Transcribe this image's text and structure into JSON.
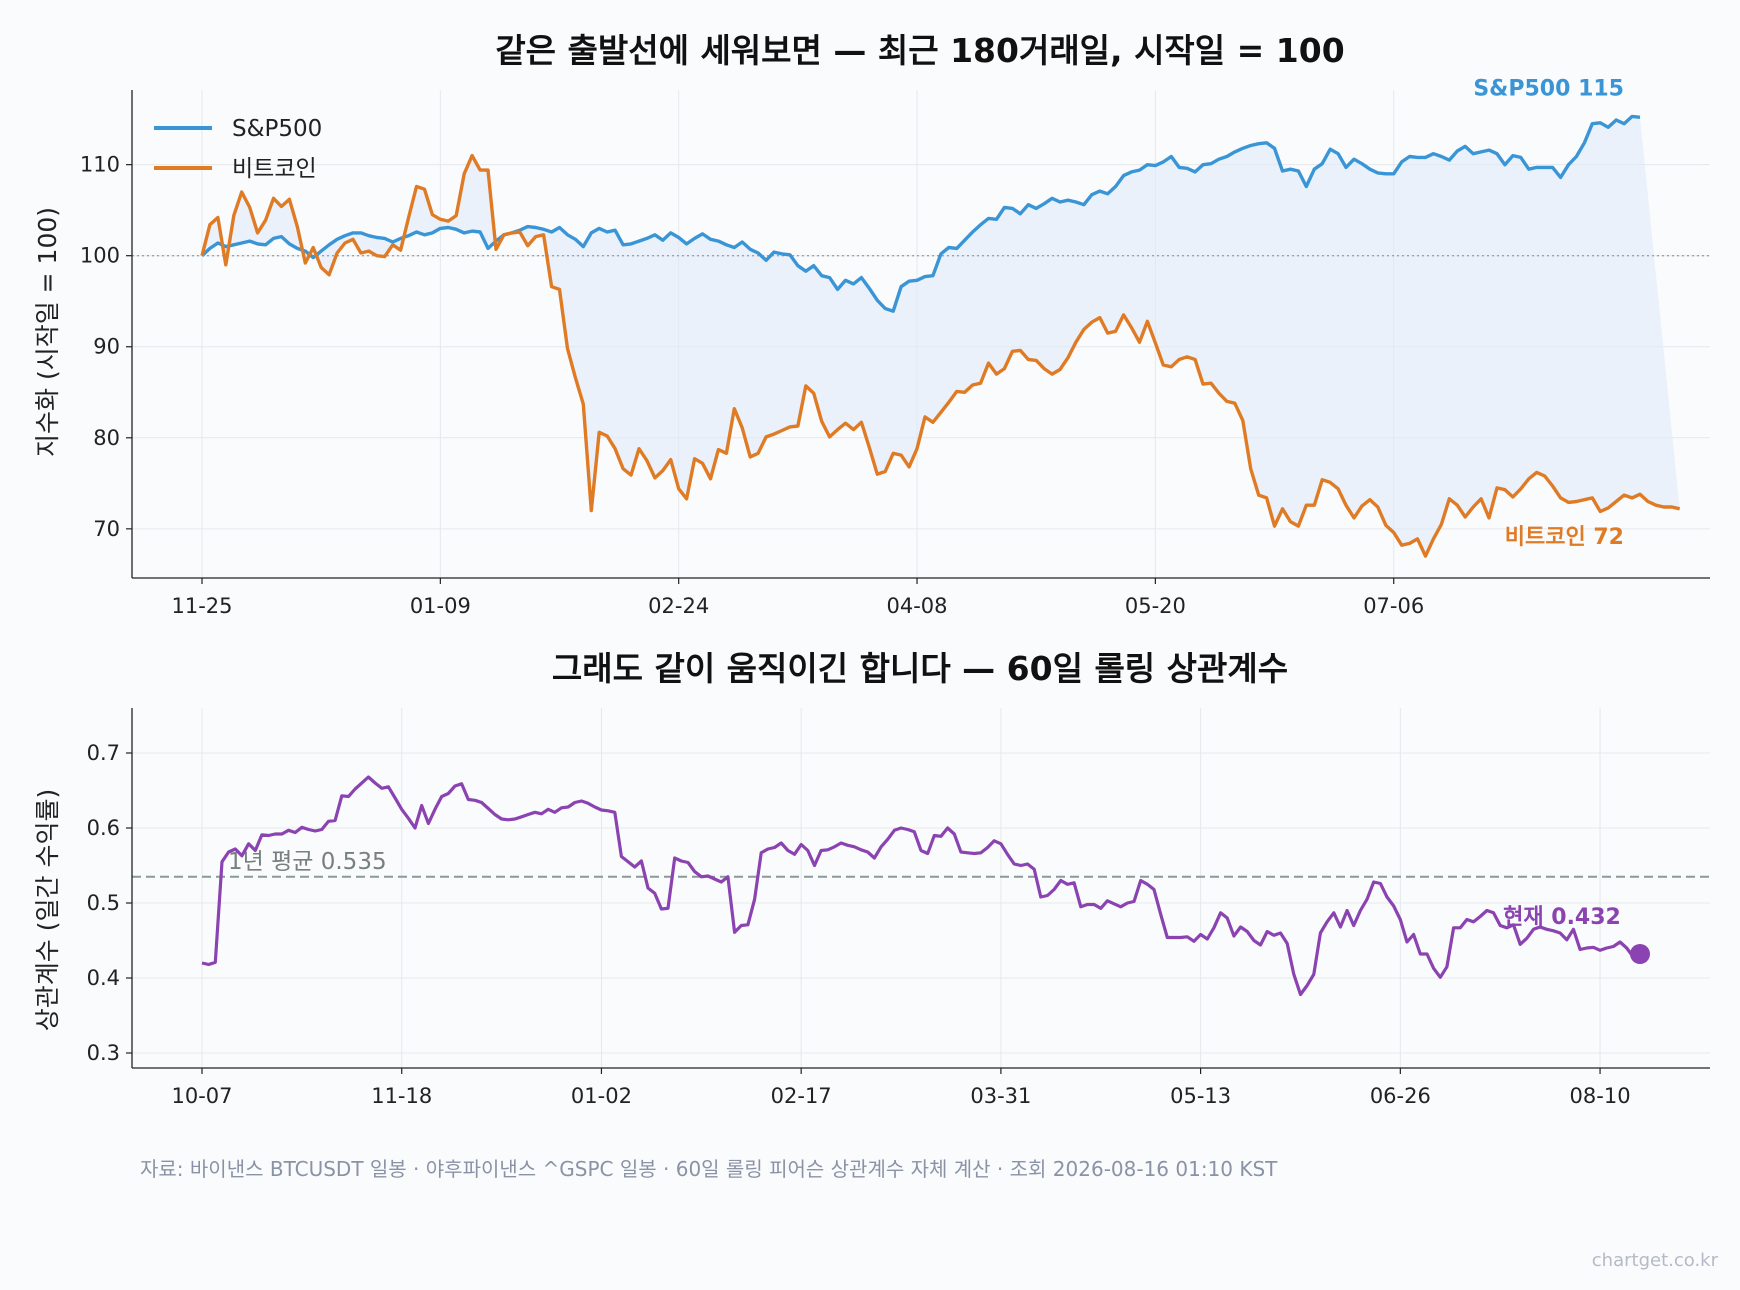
{
  "footer": "자료: 바이낸스 BTCUSDT 일봉 · 야후파이낸스 ^GSPC 일봉 · 60일 롤링 피어슨 상관계수 자체 계산 · 조회 2026-08-16 01:10 KST",
  "credit": "chartget.co.kr",
  "colors": {
    "spx": "#3a95d6",
    "btc": "#e07b25",
    "corr": "#8a43b0",
    "fill": "#dde9f7",
    "mean": "#8a9a99"
  },
  "chart_data": [
    {
      "type": "line",
      "title": "같은 출발선에 세워보면 — 최근 180거래일, 시작일 = 100",
      "ylabel": "지수화 (시작일 = 100)",
      "ylim": [
        64.6,
        118.2
      ],
      "yticks": [
        70,
        80,
        90,
        100,
        110
      ],
      "xtick_labels": [
        "11-25",
        "01-09",
        "02-24",
        "04-08",
        "05-20",
        "07-06"
      ],
      "xtick_index": [
        0,
        30,
        60,
        90,
        120,
        150
      ],
      "reference_line": 100,
      "legend": {
        "position": "top-left",
        "entries": [
          "S&P500",
          "비트코인"
        ]
      },
      "series": [
        {
          "name": "S&P500",
          "end_label": "S&P500 115",
          "values": [
            100.0,
            100.8,
            101.4,
            101.0,
            101.2,
            101.4,
            101.6,
            101.3,
            101.2,
            101.9,
            102.1,
            101.3,
            100.8,
            100.5,
            99.8,
            100.5,
            101.2,
            101.8,
            102.2,
            102.5,
            102.5,
            102.2,
            102.0,
            101.9,
            101.5,
            101.9,
            102.2,
            102.6,
            102.3,
            102.5,
            103.0,
            103.1,
            102.9,
            102.5,
            102.7,
            102.6,
            100.8,
            101.6,
            102.3,
            102.5,
            102.8,
            103.2,
            103.1,
            102.9,
            102.6,
            103.1,
            102.3,
            101.8,
            101.0,
            102.5,
            103.0,
            102.6,
            102.8,
            101.2,
            101.3,
            101.6,
            101.9,
            102.3,
            101.7,
            102.5,
            102.0,
            101.3,
            101.9,
            102.4,
            101.8,
            101.6,
            101.2,
            100.9,
            101.5,
            100.7,
            100.3,
            99.5,
            100.4,
            100.2,
            100.1,
            98.9,
            98.3,
            98.9,
            97.8,
            97.6,
            96.3,
            97.3,
            96.9,
            97.6,
            96.4,
            95.1,
            94.2,
            93.9,
            96.6,
            97.2,
            97.3,
            97.7,
            97.8,
            100.2,
            100.9,
            100.8,
            101.7,
            102.6,
            103.4,
            104.1,
            104.0,
            105.3,
            105.2,
            104.6,
            105.6,
            105.2,
            105.7,
            106.3,
            105.9,
            106.1,
            105.9,
            105.6,
            106.7,
            107.1,
            106.8,
            107.6,
            108.8,
            109.2,
            109.4,
            110.0,
            109.9,
            110.3,
            110.9,
            109.7,
            109.6,
            109.2,
            110.0,
            110.1,
            110.6,
            110.9,
            111.4,
            111.8,
            112.1,
            112.3,
            112.4,
            111.8,
            109.3,
            109.5,
            109.3,
            107.6,
            109.5,
            110.1,
            111.7,
            111.2,
            109.7,
            110.6,
            110.1,
            109.5,
            109.1,
            109.0,
            109.0,
            110.3,
            110.9,
            110.8,
            110.8,
            111.2,
            110.9,
            110.5,
            111.5,
            112.0,
            111.2,
            111.4,
            111.6,
            111.2,
            110.0,
            111.0,
            110.8,
            109.5,
            109.7,
            109.7,
            109.7,
            108.6,
            110.0,
            110.9,
            112.4,
            114.5,
            114.6,
            114.1,
            114.9,
            114.5,
            115.3,
            115.2
          ]
        },
        {
          "name": "비트코인",
          "end_label": "비트코인 72",
          "values": [
            100.0,
            103.4,
            104.2,
            99.0,
            104.4,
            107.0,
            105.3,
            102.5,
            103.9,
            106.3,
            105.4,
            106.2,
            103.2,
            99.2,
            100.9,
            98.7,
            97.9,
            100.3,
            101.4,
            101.8,
            100.3,
            100.5,
            100.0,
            99.9,
            101.2,
            100.6,
            104.2,
            107.6,
            107.3,
            104.5,
            104.0,
            103.8,
            104.4,
            109.0,
            111.0,
            109.4,
            109.4,
            100.7,
            102.3,
            102.5,
            102.6,
            101.1,
            102.1,
            102.3,
            96.6,
            96.3,
            89.8,
            86.6,
            83.7,
            72.0,
            80.6,
            80.2,
            78.8,
            76.6,
            75.9,
            78.8,
            77.5,
            75.6,
            76.4,
            77.6,
            74.4,
            73.3,
            77.7,
            77.2,
            75.5,
            78.7,
            78.3,
            83.2,
            81.1,
            77.9,
            78.3,
            80.1,
            80.4,
            80.8,
            81.2,
            81.3,
            85.7,
            84.9,
            81.8,
            80.1,
            80.9,
            81.6,
            80.9,
            81.7,
            78.9,
            76.0,
            76.3,
            78.3,
            78.1,
            76.8,
            78.8,
            82.3,
            81.7,
            82.8,
            83.9,
            85.1,
            85.0,
            85.8,
            86.0,
            88.2,
            87.0,
            87.6,
            89.5,
            89.6,
            88.6,
            88.5,
            87.6,
            87.0,
            87.5,
            88.8,
            90.5,
            91.9,
            92.7,
            93.2,
            91.5,
            91.7,
            93.5,
            92.1,
            90.5,
            92.8,
            90.4,
            88.0,
            87.8,
            88.6,
            88.9,
            88.6,
            85.9,
            86.0,
            84.9,
            84.0,
            83.8,
            81.9,
            76.6,
            73.7,
            73.4,
            70.3,
            72.2,
            70.8,
            70.3,
            72.6,
            72.6,
            75.4,
            75.1,
            74.4,
            72.6,
            71.2,
            72.5,
            73.2,
            72.4,
            70.4,
            69.6,
            68.2,
            68.4,
            68.9,
            67.0,
            68.9,
            70.5,
            73.3,
            72.6,
            71.3,
            72.4,
            73.3,
            71.2,
            74.5,
            74.3,
            73.5,
            74.4,
            75.5,
            76.2,
            75.8,
            74.7,
            73.4,
            72.9,
            73.0,
            73.2,
            73.4,
            71.9,
            72.3,
            73.0,
            73.7,
            73.4,
            73.8,
            73.0,
            72.6,
            72.4,
            72.4,
            72.2
          ]
        }
      ]
    },
    {
      "type": "line",
      "title": "그래도 같이 움직이긴 합니다 — 60일 롤링 상관계수",
      "ylabel": "상관계수 (일간 수익률)",
      "ylim": [
        0.28,
        0.76
      ],
      "yticks": [
        0.3,
        0.4,
        0.5,
        0.6,
        0.7
      ],
      "xtick_labels": [
        "10-07",
        "11-18",
        "01-02",
        "02-17",
        "03-31",
        "05-13",
        "06-26",
        "08-10"
      ],
      "xtick_index": [
        0,
        30,
        60,
        90,
        120,
        150,
        180,
        210
      ],
      "mean_line": {
        "value": 0.535,
        "label": "1년 평균 0.535"
      },
      "current": {
        "value": 0.432,
        "label": "현재 0.432"
      },
      "series": [
        {
          "name": "",
          "values": [
            0.42,
            0.418,
            0.421,
            0.555,
            0.568,
            0.572,
            0.563,
            0.579,
            0.57,
            0.591,
            0.59,
            0.592,
            0.592,
            0.597,
            0.594,
            0.601,
            0.598,
            0.596,
            0.598,
            0.609,
            0.61,
            0.643,
            0.642,
            0.652,
            0.66,
            0.668,
            0.66,
            0.653,
            0.655,
            0.64,
            0.625,
            0.613,
            0.6,
            0.63,
            0.606,
            0.625,
            0.642,
            0.646,
            0.656,
            0.659,
            0.638,
            0.637,
            0.634,
            0.626,
            0.618,
            0.612,
            0.611,
            0.612,
            0.615,
            0.618,
            0.621,
            0.619,
            0.625,
            0.621,
            0.627,
            0.628,
            0.634,
            0.636,
            0.633,
            0.628,
            0.624,
            0.623,
            0.621,
            0.562,
            0.555,
            0.548,
            0.556,
            0.52,
            0.513,
            0.492,
            0.493,
            0.56,
            0.556,
            0.554,
            0.542,
            0.535,
            0.536,
            0.532,
            0.528,
            0.535,
            0.461,
            0.47,
            0.471,
            0.505,
            0.567,
            0.572,
            0.574,
            0.58,
            0.57,
            0.565,
            0.578,
            0.57,
            0.55,
            0.57,
            0.571,
            0.575,
            0.58,
            0.577,
            0.575,
            0.571,
            0.568,
            0.56,
            0.575,
            0.585,
            0.597,
            0.6,
            0.598,
            0.595,
            0.57,
            0.566,
            0.59,
            0.589,
            0.6,
            0.592,
            0.568,
            0.567,
            0.566,
            0.567,
            0.574,
            0.583,
            0.579,
            0.565,
            0.552,
            0.55,
            0.552,
            0.545,
            0.508,
            0.51,
            0.518,
            0.53,
            0.525,
            0.527,
            0.495,
            0.498,
            0.498,
            0.493,
            0.503,
            0.499,
            0.495,
            0.5,
            0.502,
            0.53,
            0.525,
            0.518,
            0.485,
            0.454,
            0.454,
            0.454,
            0.455,
            0.449,
            0.458,
            0.452,
            0.467,
            0.487,
            0.48,
            0.456,
            0.468,
            0.462,
            0.45,
            0.444,
            0.462,
            0.457,
            0.46,
            0.446,
            0.405,
            0.378,
            0.39,
            0.405,
            0.46,
            0.475,
            0.487,
            0.468,
            0.49,
            0.47,
            0.49,
            0.505,
            0.528,
            0.526,
            0.508,
            0.496,
            0.478,
            0.448,
            0.458,
            0.432,
            0.432,
            0.413,
            0.401,
            0.415,
            0.467,
            0.467,
            0.478,
            0.475,
            0.482,
            0.49,
            0.487,
            0.47,
            0.467,
            0.471,
            0.445,
            0.453,
            0.465,
            0.468,
            0.465,
            0.463,
            0.46,
            0.451,
            0.465,
            0.438,
            0.44,
            0.441,
            0.437,
            0.44,
            0.442,
            0.448,
            0.44,
            0.428,
            0.432
          ]
        }
      ]
    }
  ]
}
